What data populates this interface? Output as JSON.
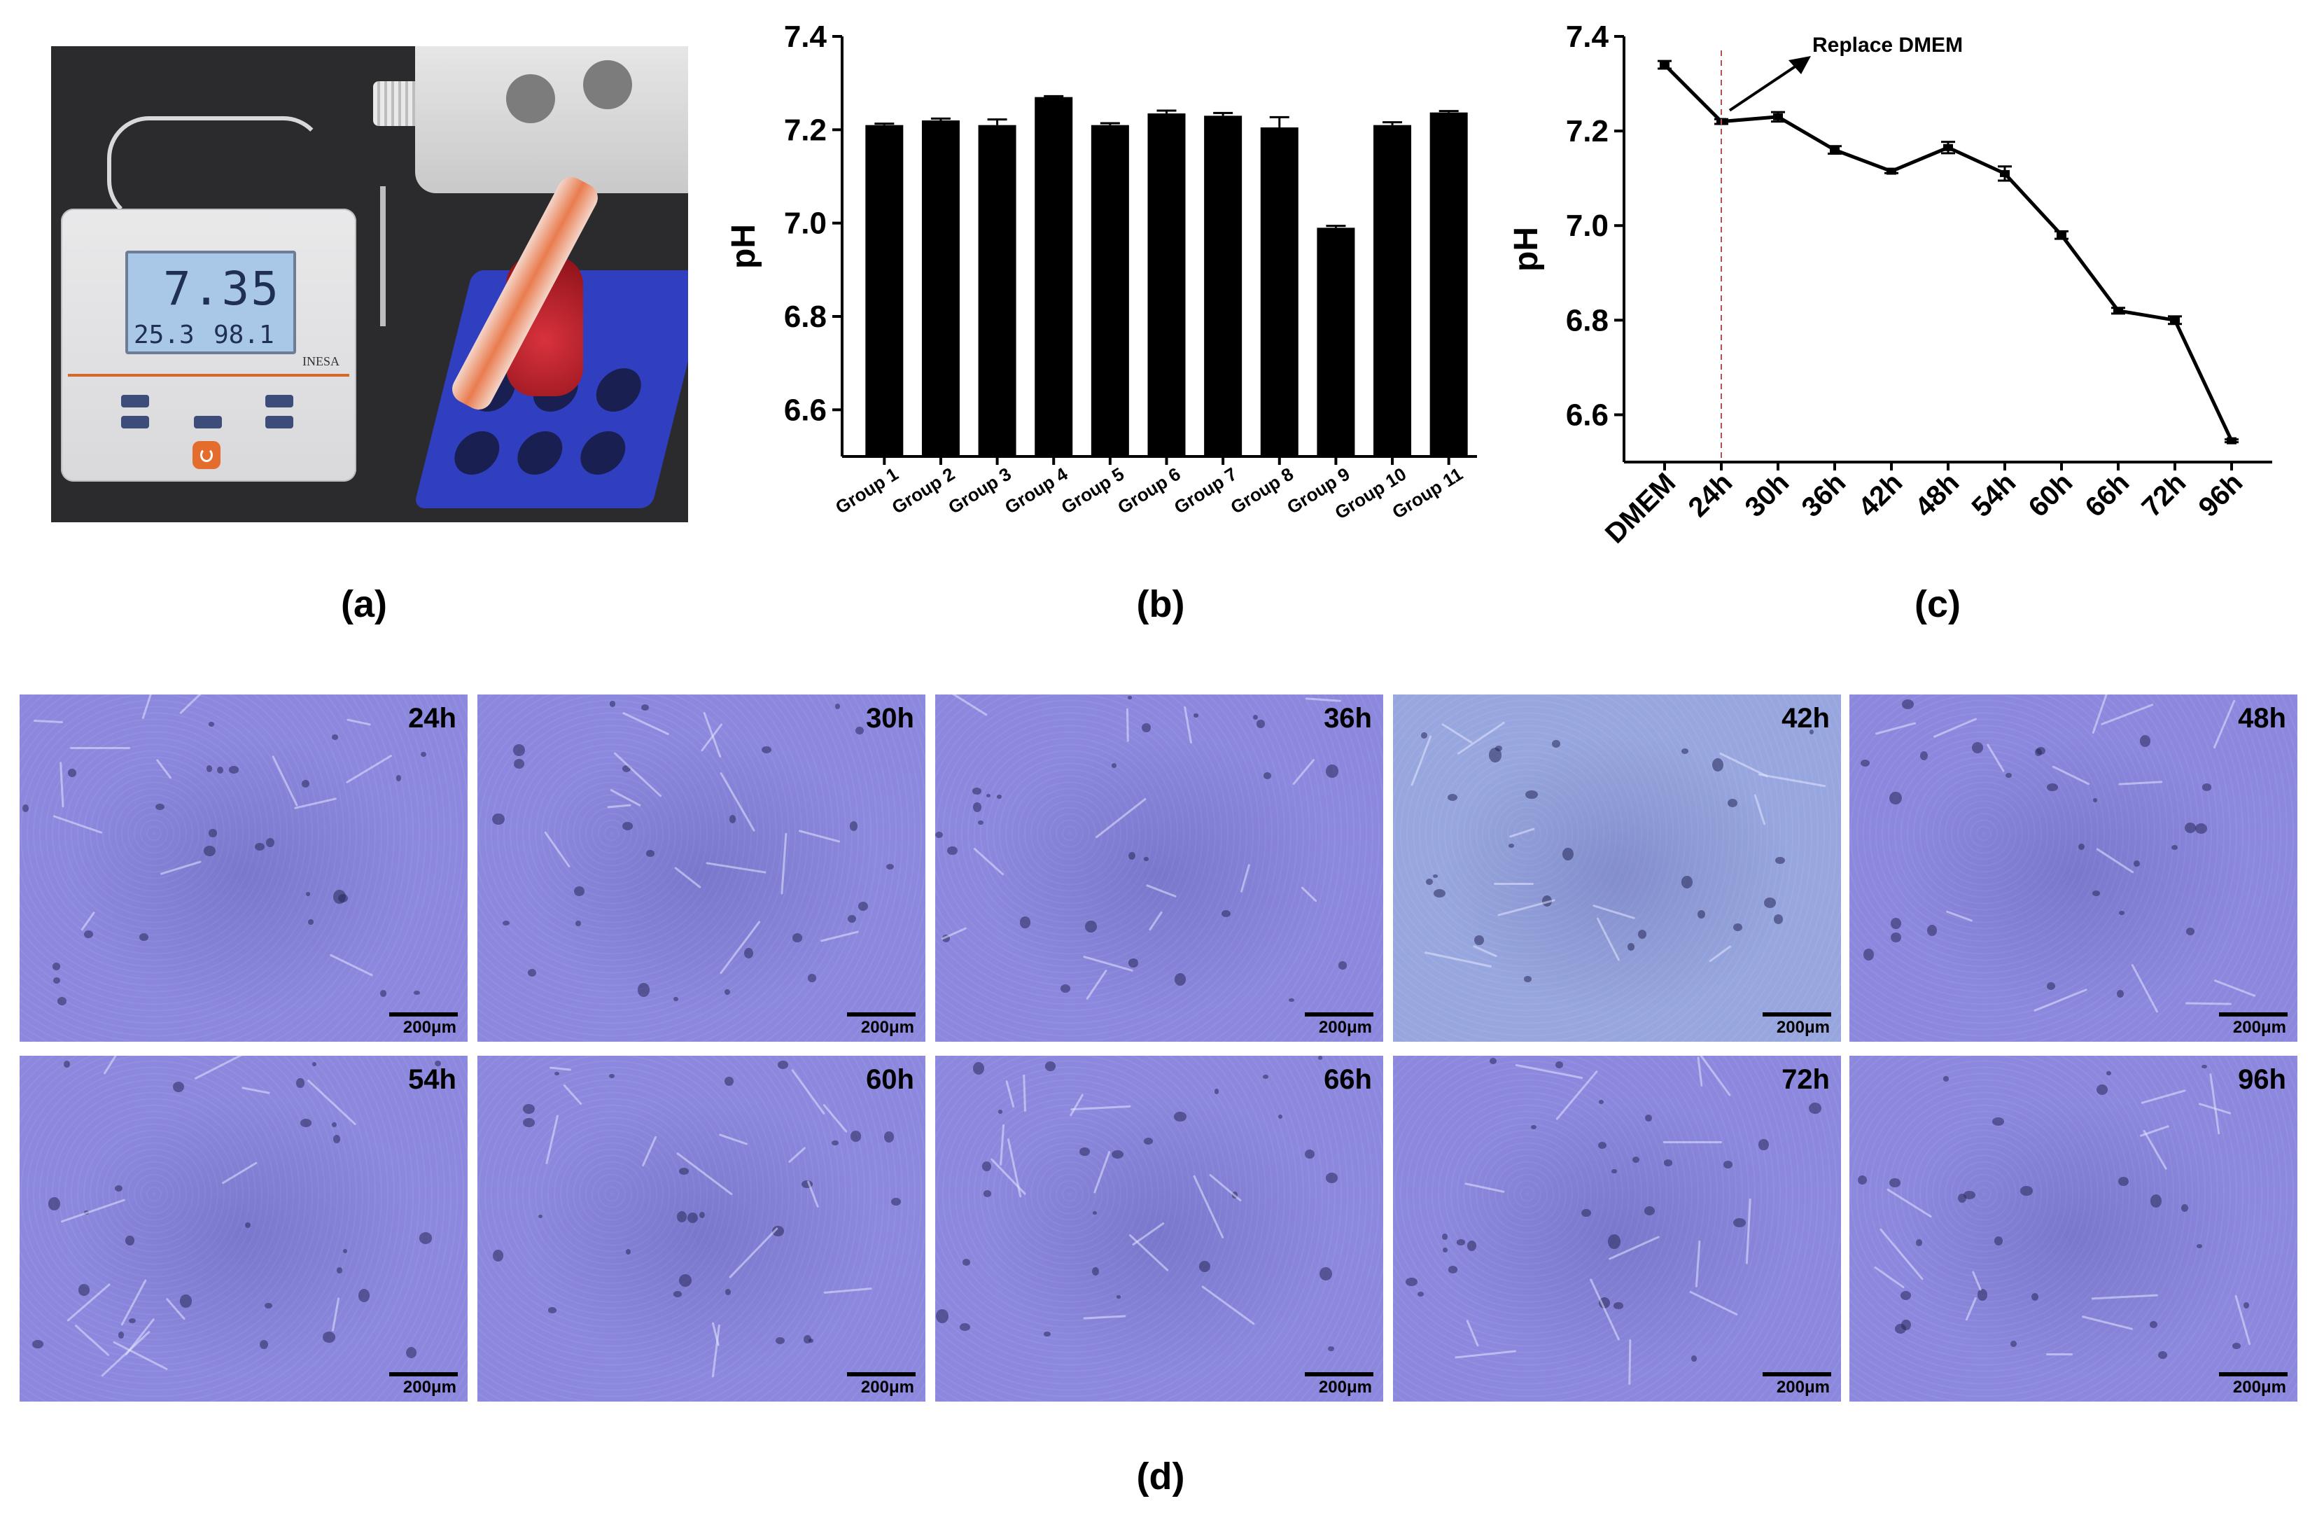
{
  "panel_labels": {
    "a": "(a)",
    "b": "(b)",
    "c": "(c)",
    "d": "(d)"
  },
  "photo": {
    "meter_reading": "7.35",
    "meter_temp": "25.3",
    "meter_percent": "98.1",
    "brand": "INESA"
  },
  "chart_data": [
    {
      "type": "bar",
      "ylabel": "pH",
      "xlabel": "",
      "title": "",
      "ylim": [
        6.5,
        7.4
      ],
      "yticks": [
        "6.6",
        "6.8",
        "7.0",
        "7.2",
        "7.4"
      ],
      "categories": [
        "Group 1",
        "Group 2",
        "Group 3",
        "Group 4",
        "Group 5",
        "Group 6",
        "Group 7",
        "Group 8",
        "Group 9",
        "Group 10",
        "Group 11"
      ],
      "values": [
        7.21,
        7.22,
        7.21,
        7.27,
        7.21,
        7.235,
        7.23,
        7.205,
        6.99,
        7.21,
        7.237
      ],
      "errors": [
        0.003,
        0.004,
        0.012,
        0.002,
        0.004,
        0.006,
        0.006,
        0.022,
        0.004,
        0.006,
        0.003
      ],
      "grid": false,
      "color": "#000000"
    },
    {
      "type": "line",
      "ylabel": "pH",
      "xlabel": "",
      "title": "",
      "ylim": [
        6.5,
        7.4
      ],
      "yticks": [
        "6.6",
        "6.8",
        "7.0",
        "7.2",
        "7.4"
      ],
      "x": [
        "DMEM",
        "24h",
        "30h",
        "36h",
        "42h",
        "48h",
        "54h",
        "60h",
        "66h",
        "72h",
        "96h"
      ],
      "values": [
        7.34,
        7.22,
        7.23,
        7.16,
        7.115,
        7.165,
        7.11,
        6.98,
        6.82,
        6.8,
        6.545
      ],
      "errors": [
        0.008,
        0.005,
        0.01,
        0.008,
        0.004,
        0.012,
        0.015,
        0.008,
        0.006,
        0.008,
        0.003
      ],
      "annotation": {
        "text": "Replace DMEM",
        "at": "24h"
      },
      "grid": false,
      "color": "#000000"
    }
  ],
  "micrographs": [
    {
      "label": "24h",
      "scale": "200μm"
    },
    {
      "label": "30h",
      "scale": "200μm"
    },
    {
      "label": "36h",
      "scale": "200μm"
    },
    {
      "label": "42h",
      "scale": "200μm"
    },
    {
      "label": "48h",
      "scale": "200μm"
    },
    {
      "label": "54h",
      "scale": "200μm"
    },
    {
      "label": "60h",
      "scale": "200μm"
    },
    {
      "label": "66h",
      "scale": "200μm"
    },
    {
      "label": "72h",
      "scale": "200μm"
    },
    {
      "label": "96h",
      "scale": "200μm"
    }
  ]
}
